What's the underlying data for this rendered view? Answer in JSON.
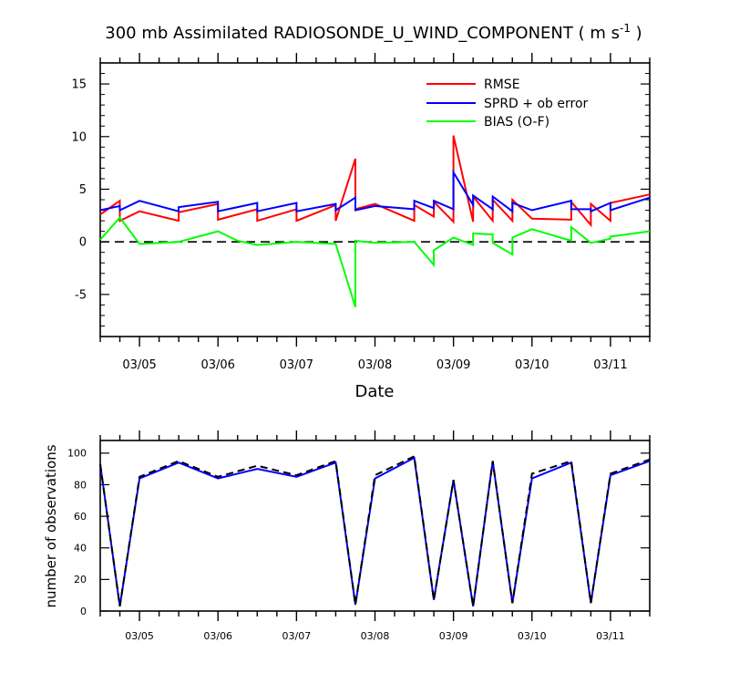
{
  "chart_data": [
    {
      "type": "line",
      "title": "300 mb Assimilated RADIOSONDE_U_WIND_COMPONENT ( m s",
      "title_superscript": "-1",
      "title_suffix": " )",
      "xlabel": "Date",
      "ylabel": "",
      "xlim": [
        0,
        7.0
      ],
      "ylim": [
        -9,
        17
      ],
      "yticks": [
        -5,
        0,
        5,
        10,
        15
      ],
      "ytick_labels": [
        "-5",
        "0",
        "5",
        "10",
        "15"
      ],
      "xtick_positions": [
        0.5,
        1.5,
        2.5,
        3.5,
        4.5,
        5.5,
        6.5
      ],
      "xtick_labels": [
        "03/05",
        "03/06",
        "03/07",
        "03/08",
        "03/09",
        "03/10",
        "03/11"
      ],
      "legend_position": "top-right",
      "zero_line": "dashed",
      "series": [
        {
          "name": "RMSE",
          "color": "#ff0000",
          "x": [
            0,
            0.25,
            0.25,
            0.5,
            1.0,
            1.0,
            1.5,
            1.5,
            2.0,
            2.0,
            2.5,
            2.5,
            3.0,
            3.0,
            3.25,
            3.25,
            3.5,
            4.0,
            4.0,
            4.25,
            4.25,
            4.5,
            4.5,
            4.75,
            4.75,
            5.0,
            5.0,
            5.25,
            5.25,
            5.5,
            6.0,
            6.0,
            6.25,
            6.25,
            6.5,
            6.5,
            7.0
          ],
          "y": [
            2.6,
            3.9,
            2.0,
            2.9,
            2.0,
            2.8,
            3.6,
            2.1,
            3.1,
            2.0,
            3.1,
            2.0,
            3.5,
            2.0,
            7.9,
            3.1,
            3.6,
            2.0,
            3.5,
            2.4,
            3.8,
            1.9,
            10.1,
            1.9,
            4.3,
            2.0,
            4.0,
            2.0,
            4.0,
            2.2,
            2.1,
            3.8,
            1.6,
            3.6,
            2.0,
            3.7,
            4.5
          ]
        },
        {
          "name": "SPRD + ob error",
          "color": "#0000ff",
          "x": [
            0,
            0.25,
            0.25,
            0.5,
            1.0,
            1.0,
            1.5,
            1.5,
            2.0,
            2.0,
            2.5,
            2.5,
            3.0,
            3.0,
            3.25,
            3.25,
            3.5,
            4.0,
            4.0,
            4.25,
            4.25,
            4.5,
            4.5,
            4.75,
            4.75,
            5.0,
            5.0,
            5.25,
            5.25,
            5.5,
            6.0,
            6.0,
            6.25,
            6.25,
            6.5,
            6.5,
            7.0
          ],
          "y": [
            3.0,
            3.4,
            3.0,
            3.9,
            2.9,
            3.3,
            3.8,
            2.9,
            3.7,
            2.9,
            3.7,
            2.9,
            3.6,
            3.0,
            4.2,
            3.0,
            3.4,
            3.1,
            3.9,
            3.2,
            3.9,
            3.1,
            6.6,
            3.5,
            4.4,
            3.1,
            4.3,
            2.9,
            3.7,
            3.0,
            3.9,
            3.1,
            3.1,
            2.9,
            3.7,
            3.0,
            4.2
          ]
        },
        {
          "name": "BIAS (O-F)",
          "color": "#00ff00",
          "x": [
            0,
            0.25,
            0.5,
            1.0,
            1.5,
            1.75,
            2.0,
            2.5,
            3.0,
            3.25,
            3.25,
            3.5,
            4.0,
            4.25,
            4.25,
            4.5,
            4.75,
            4.75,
            5.0,
            5.0,
            5.25,
            5.25,
            5.5,
            6.0,
            6.0,
            6.25,
            6.5,
            6.5,
            7.0
          ],
          "y": [
            0.2,
            2.3,
            -0.2,
            0.0,
            1.0,
            0.1,
            -0.3,
            0.0,
            -0.2,
            -6.2,
            0.1,
            -0.1,
            0.0,
            -2.2,
            -0.8,
            0.4,
            -0.3,
            0.8,
            0.7,
            -0.1,
            -1.2,
            0.4,
            1.2,
            0.1,
            1.4,
            -0.1,
            0.3,
            0.5,
            1.0
          ]
        }
      ]
    },
    {
      "type": "line",
      "title": "",
      "xlabel": "",
      "ylabel": "number of observations",
      "xlim": [
        0,
        7.0
      ],
      "ylim": [
        0,
        108
      ],
      "yticks": [
        0,
        20,
        40,
        60,
        80,
        100
      ],
      "ytick_labels": [
        "0",
        "20",
        "40",
        "60",
        "80",
        "100"
      ],
      "xtick_positions": [
        0.5,
        1.5,
        2.5,
        3.5,
        4.5,
        5.5,
        6.5
      ],
      "xtick_labels": [
        "03/05",
        "03/06",
        "03/07",
        "03/08",
        "03/09",
        "03/10",
        "03/11"
      ],
      "series": [
        {
          "style": "solid",
          "color": "#0000ff",
          "x": [
            0,
            0.25,
            0.5,
            1.0,
            1.5,
            2.0,
            2.5,
            3.0,
            3.25,
            3.5,
            4.0,
            4.25,
            4.5,
            4.75,
            5.0,
            5.25,
            5.5,
            6.0,
            6.25,
            6.5,
            7.0
          ],
          "y": [
            93,
            3,
            84,
            94,
            84,
            90,
            85,
            94,
            4,
            84,
            97,
            7,
            83,
            3,
            95,
            5,
            84,
            94,
            5,
            86,
            95
          ]
        },
        {
          "style": "dashed",
          "color": "#000000",
          "x": [
            0,
            0.25,
            0.5,
            1.0,
            1.5,
            2.0,
            2.5,
            3.0,
            3.25,
            3.5,
            4.0,
            4.25,
            4.5,
            4.75,
            5.0,
            5.25,
            5.5,
            6.0,
            6.25,
            6.5,
            7.0
          ],
          "y": [
            93,
            3,
            85,
            95,
            85,
            92,
            86,
            95,
            4,
            86,
            98,
            7,
            83,
            3,
            95,
            5,
            87,
            95,
            5,
            87,
            96
          ]
        }
      ]
    }
  ]
}
